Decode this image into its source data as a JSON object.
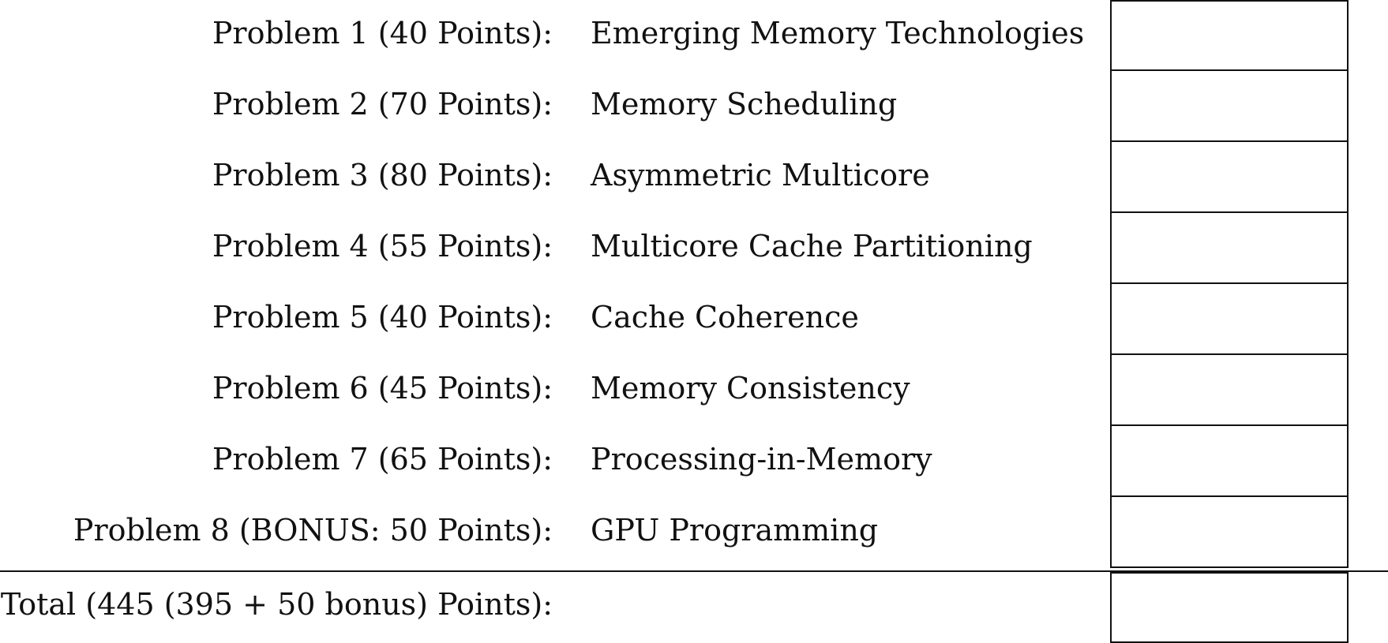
{
  "problems": [
    {
      "label": "Problem 1 (40 Points):",
      "topic": "Emerging Memory Technologies",
      "score": ""
    },
    {
      "label": "Problem 2 (70 Points):",
      "topic": "Memory Scheduling",
      "score": ""
    },
    {
      "label": "Problem 3 (80 Points):",
      "topic": "Asymmetric Multicore",
      "score": ""
    },
    {
      "label": "Problem 4 (55 Points):",
      "topic": "Multicore Cache Partitioning",
      "score": ""
    },
    {
      "label": "Problem 5 (40 Points):",
      "topic": "Cache Coherence",
      "score": ""
    },
    {
      "label": "Problem 6 (45 Points):",
      "topic": "Memory Consistency",
      "score": ""
    },
    {
      "label": "Problem 7 (65 Points):",
      "topic": "Processing-in-Memory",
      "score": ""
    },
    {
      "label": "Problem 8 (BONUS: 50 Points):",
      "topic": "GPU Programming",
      "score": ""
    }
  ],
  "total": {
    "label": "Total (445 (395 + 50 bonus) Points):",
    "score": ""
  }
}
